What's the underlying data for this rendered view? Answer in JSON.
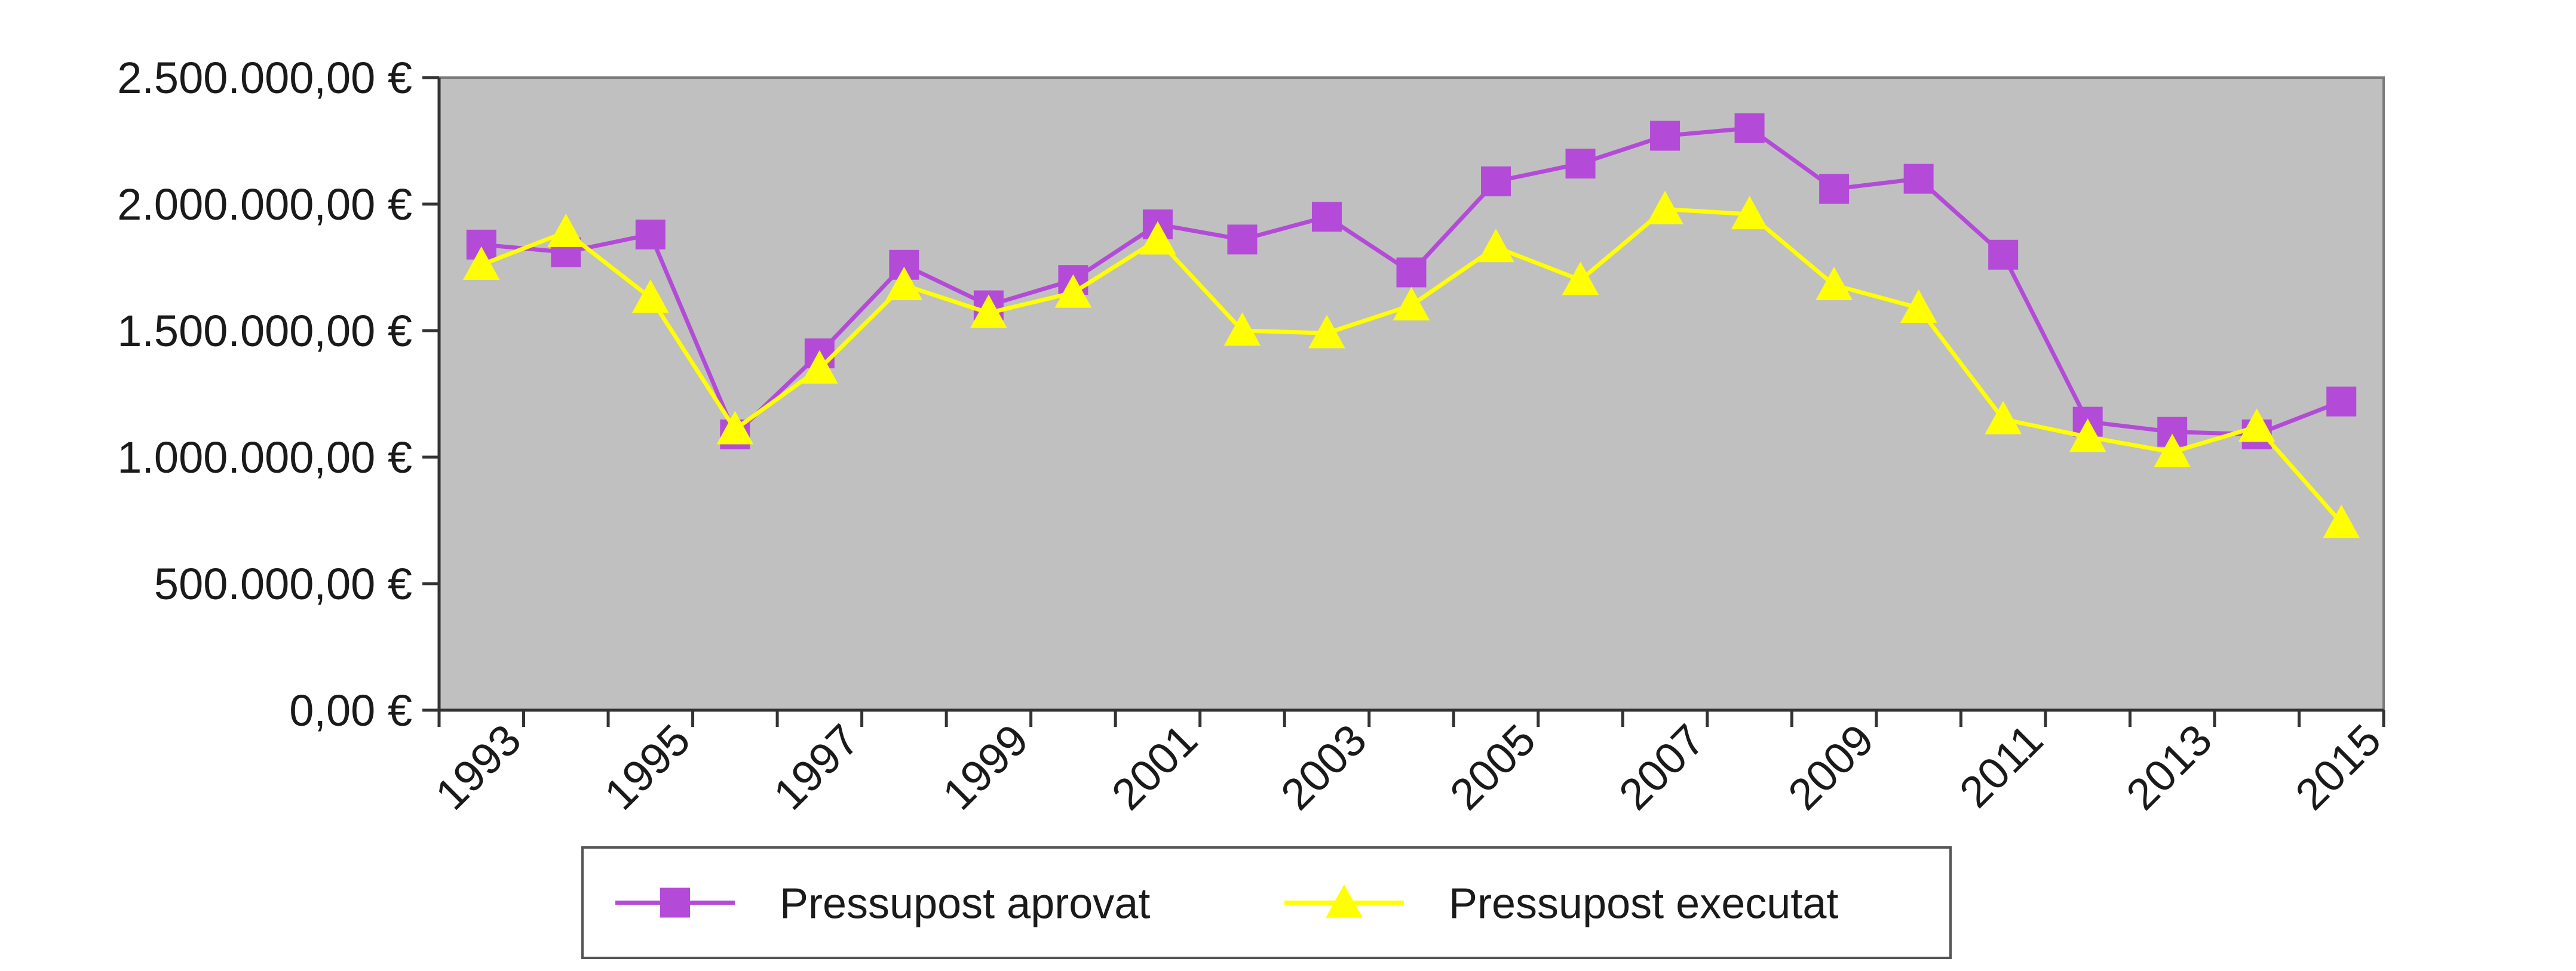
{
  "chart_data": {
    "type": "line",
    "title": "",
    "xlabel": "",
    "ylabel": "",
    "x": [
      1993,
      1994,
      1995,
      1996,
      1997,
      1998,
      1999,
      2000,
      2001,
      2002,
      2003,
      2004,
      2005,
      2006,
      2007,
      2008,
      2009,
      2010,
      2011,
      2012,
      2013,
      2014,
      2015
    ],
    "x_tick_labels": [
      "1993",
      "1995",
      "1997",
      "1999",
      "2001",
      "2003",
      "2005",
      "2007",
      "2009",
      "2011",
      "2013",
      "2015"
    ],
    "ylim": [
      0,
      2500000
    ],
    "y_ticks": [
      0,
      500000,
      1000000,
      1500000,
      2000000,
      2500000
    ],
    "y_tick_labels": [
      "0,00 €",
      "500.000,00 €",
      "1.000.000,00 €",
      "1.500.000,00 €",
      "2.000.000,00 €",
      "2.500.000,00 €"
    ],
    "grid": false,
    "legend_position": "bottom",
    "plot_background": "#c0c0c0",
    "series": [
      {
        "name": "Pressupost aprovat",
        "color": "#b44bd8",
        "marker": "square",
        "values": [
          1840000,
          1810000,
          1880000,
          1090000,
          1410000,
          1760000,
          1600000,
          1700000,
          1920000,
          1860000,
          1950000,
          1730000,
          2090000,
          2160000,
          2270000,
          2300000,
          2060000,
          2100000,
          1800000,
          1140000,
          1100000,
          1090000,
          1220000
        ]
      },
      {
        "name": "Pressupost executat",
        "color": "#ffff00",
        "marker": "triangle",
        "values": [
          1760000,
          1890000,
          1630000,
          1110000,
          1350000,
          1680000,
          1570000,
          1650000,
          1860000,
          1500000,
          1490000,
          1600000,
          1830000,
          1700000,
          1980000,
          1960000,
          1680000,
          1590000,
          1150000,
          1080000,
          1020000,
          1120000,
          740000
        ]
      }
    ]
  }
}
